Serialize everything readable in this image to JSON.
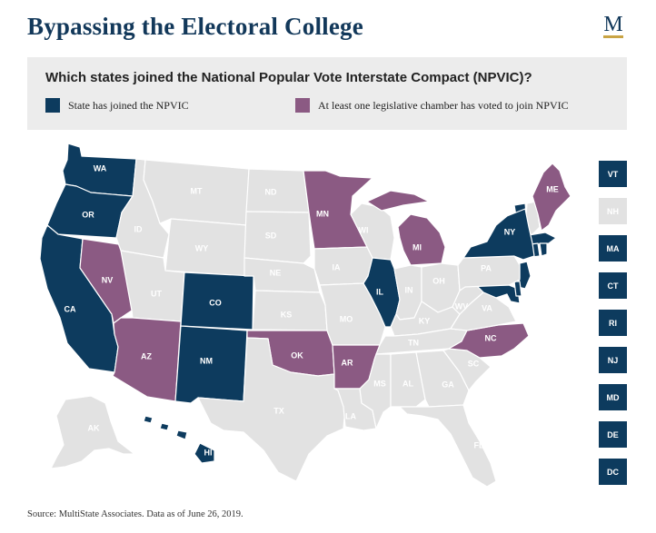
{
  "title": "Bypassing the Electoral College",
  "logo_letter": "M",
  "question": "Which states joined the National Popular Vote Interstate Compact (NPVIC)?",
  "legend": [
    {
      "label": "State has joined the NPVIC",
      "color": "#0d3b5e"
    },
    {
      "label": "At least one legislative chamber has voted to join NPVIC",
      "color": "#8b5a83"
    }
  ],
  "colors": {
    "joined": "#0d3b5e",
    "chamber": "#8b5a83",
    "none": "#e2e2e2",
    "label_dark": "#ffffff",
    "label_light": "#ffffff"
  },
  "map_states": [
    {
      "code": "WA",
      "status": "joined"
    },
    {
      "code": "OR",
      "status": "joined"
    },
    {
      "code": "CA",
      "status": "joined"
    },
    {
      "code": "NV",
      "status": "chamber"
    },
    {
      "code": "ID",
      "status": "none"
    },
    {
      "code": "MT",
      "status": "none"
    },
    {
      "code": "WY",
      "status": "none"
    },
    {
      "code": "UT",
      "status": "none"
    },
    {
      "code": "AZ",
      "status": "chamber"
    },
    {
      "code": "CO",
      "status": "joined"
    },
    {
      "code": "NM",
      "status": "joined"
    },
    {
      "code": "ND",
      "status": "none"
    },
    {
      "code": "SD",
      "status": "none"
    },
    {
      "code": "NE",
      "status": "none"
    },
    {
      "code": "KS",
      "status": "none"
    },
    {
      "code": "OK",
      "status": "chamber"
    },
    {
      "code": "TX",
      "status": "none"
    },
    {
      "code": "MN",
      "status": "chamber"
    },
    {
      "code": "IA",
      "status": "none"
    },
    {
      "code": "MO",
      "status": "none"
    },
    {
      "code": "AR",
      "status": "chamber"
    },
    {
      "code": "LA",
      "status": "none"
    },
    {
      "code": "WI",
      "status": "none"
    },
    {
      "code": "IL",
      "status": "joined"
    },
    {
      "code": "MI",
      "status": "chamber"
    },
    {
      "code": "IN",
      "status": "none"
    },
    {
      "code": "OH",
      "status": "none"
    },
    {
      "code": "KY",
      "status": "none"
    },
    {
      "code": "TN",
      "status": "none"
    },
    {
      "code": "MS",
      "status": "none"
    },
    {
      "code": "AL",
      "status": "none"
    },
    {
      "code": "GA",
      "status": "none"
    },
    {
      "code": "FL",
      "status": "none"
    },
    {
      "code": "SC",
      "status": "none"
    },
    {
      "code": "NC",
      "status": "chamber"
    },
    {
      "code": "VA",
      "status": "none"
    },
    {
      "code": "WV",
      "status": "none"
    },
    {
      "code": "PA",
      "status": "none"
    },
    {
      "code": "NY",
      "status": "joined"
    },
    {
      "code": "ME",
      "status": "chamber"
    },
    {
      "code": "AK",
      "status": "none"
    },
    {
      "code": "HI",
      "status": "joined"
    }
  ],
  "side_states": [
    {
      "code": "VT",
      "status": "joined"
    },
    {
      "code": "NH",
      "status": "none"
    },
    {
      "code": "MA",
      "status": "joined"
    },
    {
      "code": "CT",
      "status": "joined"
    },
    {
      "code": "RI",
      "status": "joined"
    },
    {
      "code": "NJ",
      "status": "joined"
    },
    {
      "code": "MD",
      "status": "joined"
    },
    {
      "code": "DE",
      "status": "joined"
    },
    {
      "code": "DC",
      "status": "joined"
    }
  ],
  "source": "Source: MultiState Associates. Data as of June 26, 2019."
}
